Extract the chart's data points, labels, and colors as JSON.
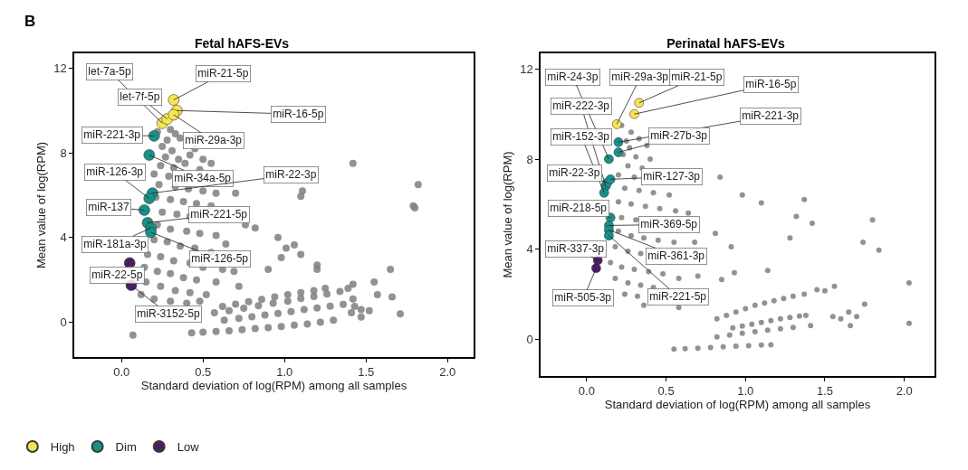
{
  "chart_data": [
    {
      "type": "scatter",
      "title": "Fetal hAFS-EVs",
      "xlabel": "Standard deviation of log(RPM) among all samples",
      "ylabel": "Mean value of log(RPM)",
      "xlim": [
        -0.29,
        2.16
      ],
      "ylim": [
        -1.64,
        12.7
      ],
      "xticks": [
        {
          "value": 0,
          "label": "0.0"
        },
        {
          "value": 0.5,
          "label": "0.5"
        },
        {
          "value": 1,
          "label": "1.0"
        },
        {
          "value": 1.5,
          "label": "1.5"
        },
        {
          "value": 2,
          "label": "2.0"
        }
      ],
      "yticks": [
        0,
        4,
        8,
        12
      ],
      "grid": false,
      "legend": "bottom left",
      "marker": "circle",
      "series": [
        {
          "color": "#7f7f7f",
          "x": [
            0.22,
            0.3,
            0.33,
            0.28,
            0.36,
            0.25,
            0.31,
            0.45,
            0.27,
            0.35,
            0.42,
            0.5,
            0.24,
            0.32,
            0.39,
            0.48,
            0.55,
            0.2,
            0.29,
            0.23,
            0.33,
            0.41,
            0.5,
            0.58,
            0.7,
            0.21,
            0.3,
            0.38,
            0.46,
            0.55,
            0.25,
            0.34,
            0.42,
            0.76,
            0.22,
            0.3,
            0.4,
            0.48,
            0.58,
            0.2,
            0.28,
            0.36,
            0.45,
            0.55,
            0.16,
            0.24,
            0.32,
            0.42,
            0.5,
            0.62,
            0.14,
            0.22,
            0.3,
            0.38,
            0.46,
            0.58,
            0.72,
            0.15,
            0.24,
            0.33,
            0.42,
            0.52,
            0.12,
            0.2,
            0.3,
            0.4,
            0.48,
            0.96,
            1.01,
            1.06,
            1.1,
            0.98,
            0.9,
            0.82,
            0.64,
            0.69,
            0.07,
            1.42,
            1.82,
            1.79,
            1.8,
            1.2,
            1.2,
            1.65,
            1.55,
            1.57,
            1.66,
            1.71,
            1.42,
            1.39,
            1.42,
            1.43,
            1.47,
            1.52,
            1.47,
            1.41,
            1.11,
            1.1,
            0.43,
            0.5,
            0.58,
            0.66,
            0.74,
            0.82,
            0.9,
            0.98,
            1.06,
            1.14,
            1.22,
            1.3,
            0.63,
            0.72,
            0.8,
            0.88,
            0.96,
            1.04,
            1.12,
            1.2,
            1.28,
            1.36,
            0.57,
            0.66,
            0.75,
            0.84,
            0.93,
            1.02,
            1.1,
            1.18,
            1.26,
            1.34,
            0.62,
            0.7,
            0.78,
            0.86,
            0.94,
            1.02,
            1.1,
            1.18,
            1.25
          ],
          "values": [
            9.0,
            9.1,
            8.9,
            8.6,
            8.7,
            8.3,
            8.1,
            8.2,
            7.8,
            7.7,
            7.9,
            7.7,
            7.4,
            7.3,
            7.5,
            7.2,
            7.5,
            7.0,
            6.9,
            6.5,
            6.4,
            6.3,
            6.2,
            6.1,
            6.1,
            5.9,
            5.8,
            5.7,
            5.6,
            5.5,
            5.2,
            5.1,
            5.0,
            4.6,
            4.6,
            4.4,
            4.3,
            4.2,
            4.1,
            3.9,
            3.8,
            3.6,
            3.5,
            3.3,
            3.2,
            3.1,
            2.9,
            2.8,
            2.6,
            2.5,
            2.6,
            2.4,
            2.3,
            2.1,
            2.0,
            1.9,
            1.7,
            1.9,
            1.7,
            1.5,
            1.4,
            1.3,
            1.3,
            1.1,
            1.0,
            0.9,
            1.0,
            4.0,
            3.5,
            3.65,
            3.2,
            3.05,
            2.5,
            4.45,
            3.7,
            2.4,
            -0.6,
            7.5,
            6.5,
            5.5,
            5.4,
            2.7,
            2.5,
            2.5,
            1.9,
            1.3,
            1.2,
            0.4,
            1.8,
            1.6,
            1.1,
            0.75,
            0.6,
            0.55,
            0.25,
            0.45,
            6.2,
            5.95,
            -0.5,
            -0.47,
            -0.43,
            -0.4,
            -0.35,
            -0.3,
            -0.25,
            -0.2,
            -0.14,
            -0.08,
            0.0,
            0.1,
            0.1,
            0.18,
            0.26,
            0.34,
            0.42,
            0.5,
            0.6,
            0.68,
            0.76,
            0.85,
            0.45,
            0.55,
            0.66,
            0.78,
            0.9,
            1.0,
            1.12,
            1.22,
            1.34,
            1.45,
            0.75,
            0.86,
            0.97,
            1.08,
            1.2,
            1.3,
            1.4,
            1.5,
            1.6
          ]
        },
        {
          "name": "High",
          "color": "#f6e455",
          "x": [
            0.25,
            0.28,
            0.32,
            0.34,
            0.32
          ],
          "values": [
            9.4,
            9.6,
            10.5,
            10.0,
            9.8
          ]
        },
        {
          "name": "Dim",
          "color": "#17918a",
          "x": [
            0.2,
            0.17,
            0.19,
            0.17,
            0.14,
            0.16,
            0.18,
            0.18
          ],
          "values": [
            8.8,
            7.9,
            6.1,
            5.85,
            5.3,
            4.7,
            4.45,
            4.25
          ]
        },
        {
          "name": "Low",
          "color": "#4b1e63",
          "x": [
            0.05,
            0.06
          ],
          "values": [
            2.8,
            1.75
          ]
        }
      ],
      "annotations": [
        "B",
        {
          "text": "let-7a-5p",
          "x": 0.25,
          "y": 9.4
        },
        {
          "text": "let-7f-5p",
          "x": 0.28,
          "y": 9.6
        },
        {
          "text": "miR-21-5p",
          "x": 0.32,
          "y": 10.5
        },
        {
          "text": "miR-16-5p",
          "x": 0.34,
          "y": 10.0
        },
        {
          "text": "miR-29a-3p",
          "x": 0.32,
          "y": 9.8
        },
        {
          "text": "miR-221-3p",
          "x": 0.2,
          "y": 8.8
        },
        {
          "text": "miR-34a-5p",
          "x": 0.17,
          "y": 7.9
        },
        {
          "text": "miR-22-3p",
          "x": 0.19,
          "y": 6.1
        },
        {
          "text": "miR-126-3p",
          "x": 0.17,
          "y": 5.85
        },
        {
          "text": "miR-137",
          "x": 0.14,
          "y": 5.3
        },
        {
          "text": "miR-221-5p",
          "x": 0.16,
          "y": 4.7
        },
        {
          "text": "miR-181a-3p",
          "x": 0.18,
          "y": 4.45
        },
        {
          "text": "miR-126-5p",
          "x": 0.18,
          "y": 4.25
        },
        {
          "text": "miR-22-5p",
          "x": 0.05,
          "y": 2.8
        },
        {
          "text": "miR-3152-5p",
          "x": 0.06,
          "y": 1.75
        }
      ]
    },
    {
      "type": "scatter",
      "title": "Perinatal hAFS-EVs",
      "xlabel": "Standard deviation of log(RPM) among all samples",
      "ylabel": "Mean value of log(RPM)",
      "xlim": [
        -0.29,
        2.19
      ],
      "ylim": [
        -1.64,
        12.7
      ],
      "xticks": [
        {
          "value": 0,
          "label": "0.0"
        },
        {
          "value": 0.5,
          "label": "0.5"
        },
        {
          "value": 1,
          "label": "1.0"
        },
        {
          "value": 1.5,
          "label": "1.5"
        },
        {
          "value": 2,
          "label": "2.0"
        }
      ],
      "yticks": [
        0,
        4,
        8,
        12
      ],
      "grid": false,
      "marker": "circle",
      "series": [
        {
          "color": "#7f7f7f",
          "x": [
            0.22,
            0.28,
            0.25,
            0.33,
            0.27,
            0.38,
            0.23,
            0.31,
            0.4,
            0.26,
            0.35,
            0.2,
            0.3,
            0.24,
            0.33,
            0.42,
            0.52,
            0.2,
            0.28,
            0.37,
            0.46,
            0.56,
            0.64,
            0.22,
            0.31,
            0.2,
            0.28,
            0.36,
            0.45,
            0.55,
            0.68,
            0.18,
            0.26,
            0.34,
            0.15,
            0.22,
            0.3,
            0.39,
            0.48,
            0.58,
            0.7,
            0.18,
            0.26,
            0.34,
            0.42,
            0.24,
            0.32,
            0.36,
            0.58,
            0.84,
            0.98,
            1.1,
            1.37,
            1.32,
            1.42,
            1.8,
            1.74,
            1.84,
            1.28,
            0.81,
            0.91,
            0.93,
            1.14,
            0.85,
            2.03,
            2.03,
            1.75,
            1.56,
            1.5,
            1.65,
            1.7,
            1.6,
            1.66,
            1.55,
            0.82,
            0.88,
            0.94,
            1.0,
            1.06,
            1.12,
            1.18,
            1.24,
            1.3,
            1.37,
            1.45,
            0.92,
            0.98,
            1.04,
            1.1,
            1.16,
            1.22,
            1.28,
            1.34,
            1.38,
            0.82,
            0.9,
            0.98,
            1.06,
            1.14,
            1.22,
            1.3,
            1.41,
            0.55,
            0.62,
            0.7,
            0.78,
            0.86,
            0.94,
            1.02,
            1.1,
            1.16
          ],
          "values": [
            9.5,
            9.2,
            8.8,
            8.9,
            8.5,
            8.6,
            8.2,
            8.1,
            8.0,
            7.7,
            7.6,
            7.3,
            7.2,
            6.7,
            6.6,
            6.5,
            6.4,
            6.1,
            6.0,
            5.9,
            5.8,
            5.7,
            5.6,
            5.4,
            5.3,
            4.8,
            4.6,
            4.5,
            4.4,
            4.3,
            4.3,
            4.1,
            3.9,
            3.8,
            3.4,
            3.2,
            3.1,
            3.0,
            2.9,
            2.7,
            2.8,
            2.7,
            2.5,
            2.4,
            2.3,
            2.0,
            1.9,
            1.5,
            1.4,
            7.2,
            6.4,
            6.05,
            6.2,
            5.45,
            5.15,
            5.3,
            4.3,
            3.95,
            4.5,
            4.7,
            4.1,
            2.95,
            3.05,
            2.65,
            2.5,
            0.7,
            1.55,
            2.35,
            2.15,
            1.2,
            1.0,
            0.9,
            0.6,
            1.0,
            0.9,
            1.05,
            1.2,
            1.35,
            1.5,
            1.6,
            1.7,
            1.8,
            1.9,
            2.0,
            2.2,
            0.5,
            0.58,
            0.66,
            0.74,
            0.82,
            0.9,
            0.96,
            1.02,
            1.05,
            0.1,
            0.18,
            0.26,
            0.33,
            0.4,
            0.46,
            0.52,
            0.6,
            -0.45,
            -0.42,
            -0.4,
            -0.37,
            -0.34,
            -0.31,
            -0.29,
            -0.26,
            -0.25
          ]
        },
        {
          "color": "#f6e455",
          "x": [
            0.19,
            0.33,
            0.3
          ],
          "values": [
            9.55,
            10.5,
            10.0
          ]
        },
        {
          "color": "#17918a",
          "x": [
            0.2,
            0.2,
            0.14,
            0.12,
            0.11,
            0.13,
            0.15,
            0.15,
            0.14,
            0.14,
            0.14
          ],
          "values": [
            8.75,
            8.3,
            8.0,
            6.8,
            6.5,
            6.95,
            7.1,
            5.4,
            5.05,
            4.85,
            4.6
          ]
        },
        {
          "color": "#4b1e63",
          "x": [
            0.07,
            0.06
          ],
          "values": [
            3.5,
            3.15
          ]
        }
      ],
      "annotations": [
        {
          "text": "miR-24-3p",
          "x": 0.14,
          "y": 8.0
        },
        {
          "text": "miR-29a-3p",
          "x": 0.19,
          "y": 9.55
        },
        {
          "text": "miR-21-5p",
          "x": 0.33,
          "y": 10.5
        },
        {
          "text": "miR-16-5p",
          "x": 0.3,
          "y": 10.0
        },
        {
          "text": "miR-221-3p",
          "x": 0.2,
          "y": 8.75
        },
        {
          "text": "miR-222-3p",
          "x": 0.12,
          "y": 6.8
        },
        {
          "text": "miR-152-3p",
          "x": 0.11,
          "y": 6.5
        },
        {
          "text": "miR-27b-3p",
          "x": 0.2,
          "y": 8.3
        },
        {
          "text": "miR-22-3p",
          "x": 0.13,
          "y": 6.95
        },
        {
          "text": "miR-127-3p",
          "x": 0.15,
          "y": 7.1
        },
        {
          "text": "miR-218-5p",
          "x": 0.15,
          "y": 5.4
        },
        {
          "text": "miR-369-5p",
          "x": 0.14,
          "y": 5.05
        },
        {
          "text": "miR-361-3p",
          "x": 0.14,
          "y": 4.85
        },
        {
          "text": "miR-221-5p",
          "x": 0.14,
          "y": 4.6
        },
        {
          "text": "miR-337-3p",
          "x": 0.07,
          "y": 3.5
        },
        {
          "text": "miR-505-3p",
          "x": 0.06,
          "y": 3.15
        }
      ]
    }
  ]
}
